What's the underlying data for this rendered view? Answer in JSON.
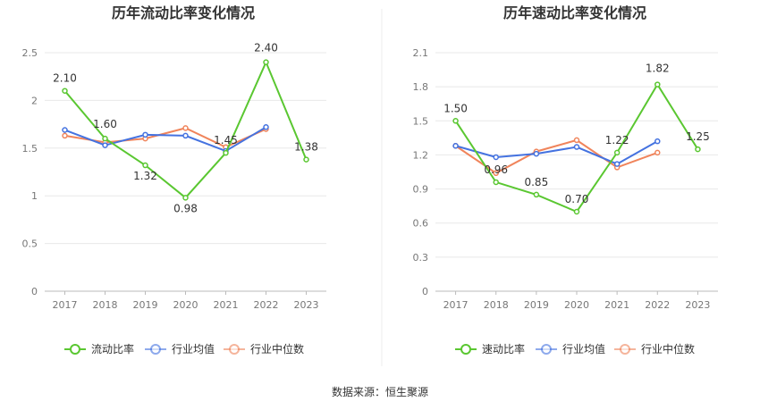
{
  "source": "数据来源：恒生聚源",
  "colors": {
    "main": "#5ac731",
    "avg": "#4472e0",
    "median": "#f0845b"
  },
  "chart_data": [
    {
      "type": "line",
      "title": "历年流动比率变化情况",
      "categories": [
        "2017",
        "2018",
        "2019",
        "2020",
        "2021",
        "2022",
        "2023"
      ],
      "ylim": [
        0,
        2.5
      ],
      "yticks": [
        "0",
        "0.5",
        "1",
        "1.5",
        "2",
        "2.5"
      ],
      "grid": true,
      "legend_position": "bottom",
      "series": [
        {
          "name": "流动比率",
          "values": [
            2.1,
            1.6,
            1.32,
            0.98,
            1.45,
            2.4,
            1.38
          ],
          "labels": [
            "2.10",
            "1.60",
            "1.32",
            "0.98",
            "1.45",
            "2.40",
            "1.38"
          ]
        },
        {
          "name": "行业均值",
          "values": [
            1.69,
            1.53,
            1.64,
            1.63,
            1.47,
            1.72,
            null
          ]
        },
        {
          "name": "行业中位数",
          "values": [
            1.63,
            1.56,
            1.6,
            1.71,
            1.51,
            1.7,
            null
          ]
        }
      ]
    },
    {
      "type": "line",
      "title": "历年速动比率变化情况",
      "categories": [
        "2017",
        "2018",
        "2019",
        "2020",
        "2021",
        "2022",
        "2023"
      ],
      "ylim": [
        0,
        2.1
      ],
      "yticks": [
        "0",
        "0.3",
        "0.6",
        "0.9",
        "1.2",
        "1.5",
        "1.8",
        "2.1"
      ],
      "grid": true,
      "legend_position": "bottom",
      "series": [
        {
          "name": "速动比率",
          "values": [
            1.5,
            0.96,
            0.85,
            0.7,
            1.22,
            1.82,
            1.25
          ],
          "labels": [
            "1.50",
            "0.96",
            "0.85",
            "0.70",
            "1.22",
            "1.82",
            "1.25"
          ]
        },
        {
          "name": "行业均值",
          "values": [
            1.28,
            1.18,
            1.21,
            1.27,
            1.12,
            1.32,
            null
          ]
        },
        {
          "name": "行业中位数",
          "values": [
            1.28,
            1.04,
            1.23,
            1.33,
            1.09,
            1.22,
            null
          ]
        }
      ]
    }
  ]
}
